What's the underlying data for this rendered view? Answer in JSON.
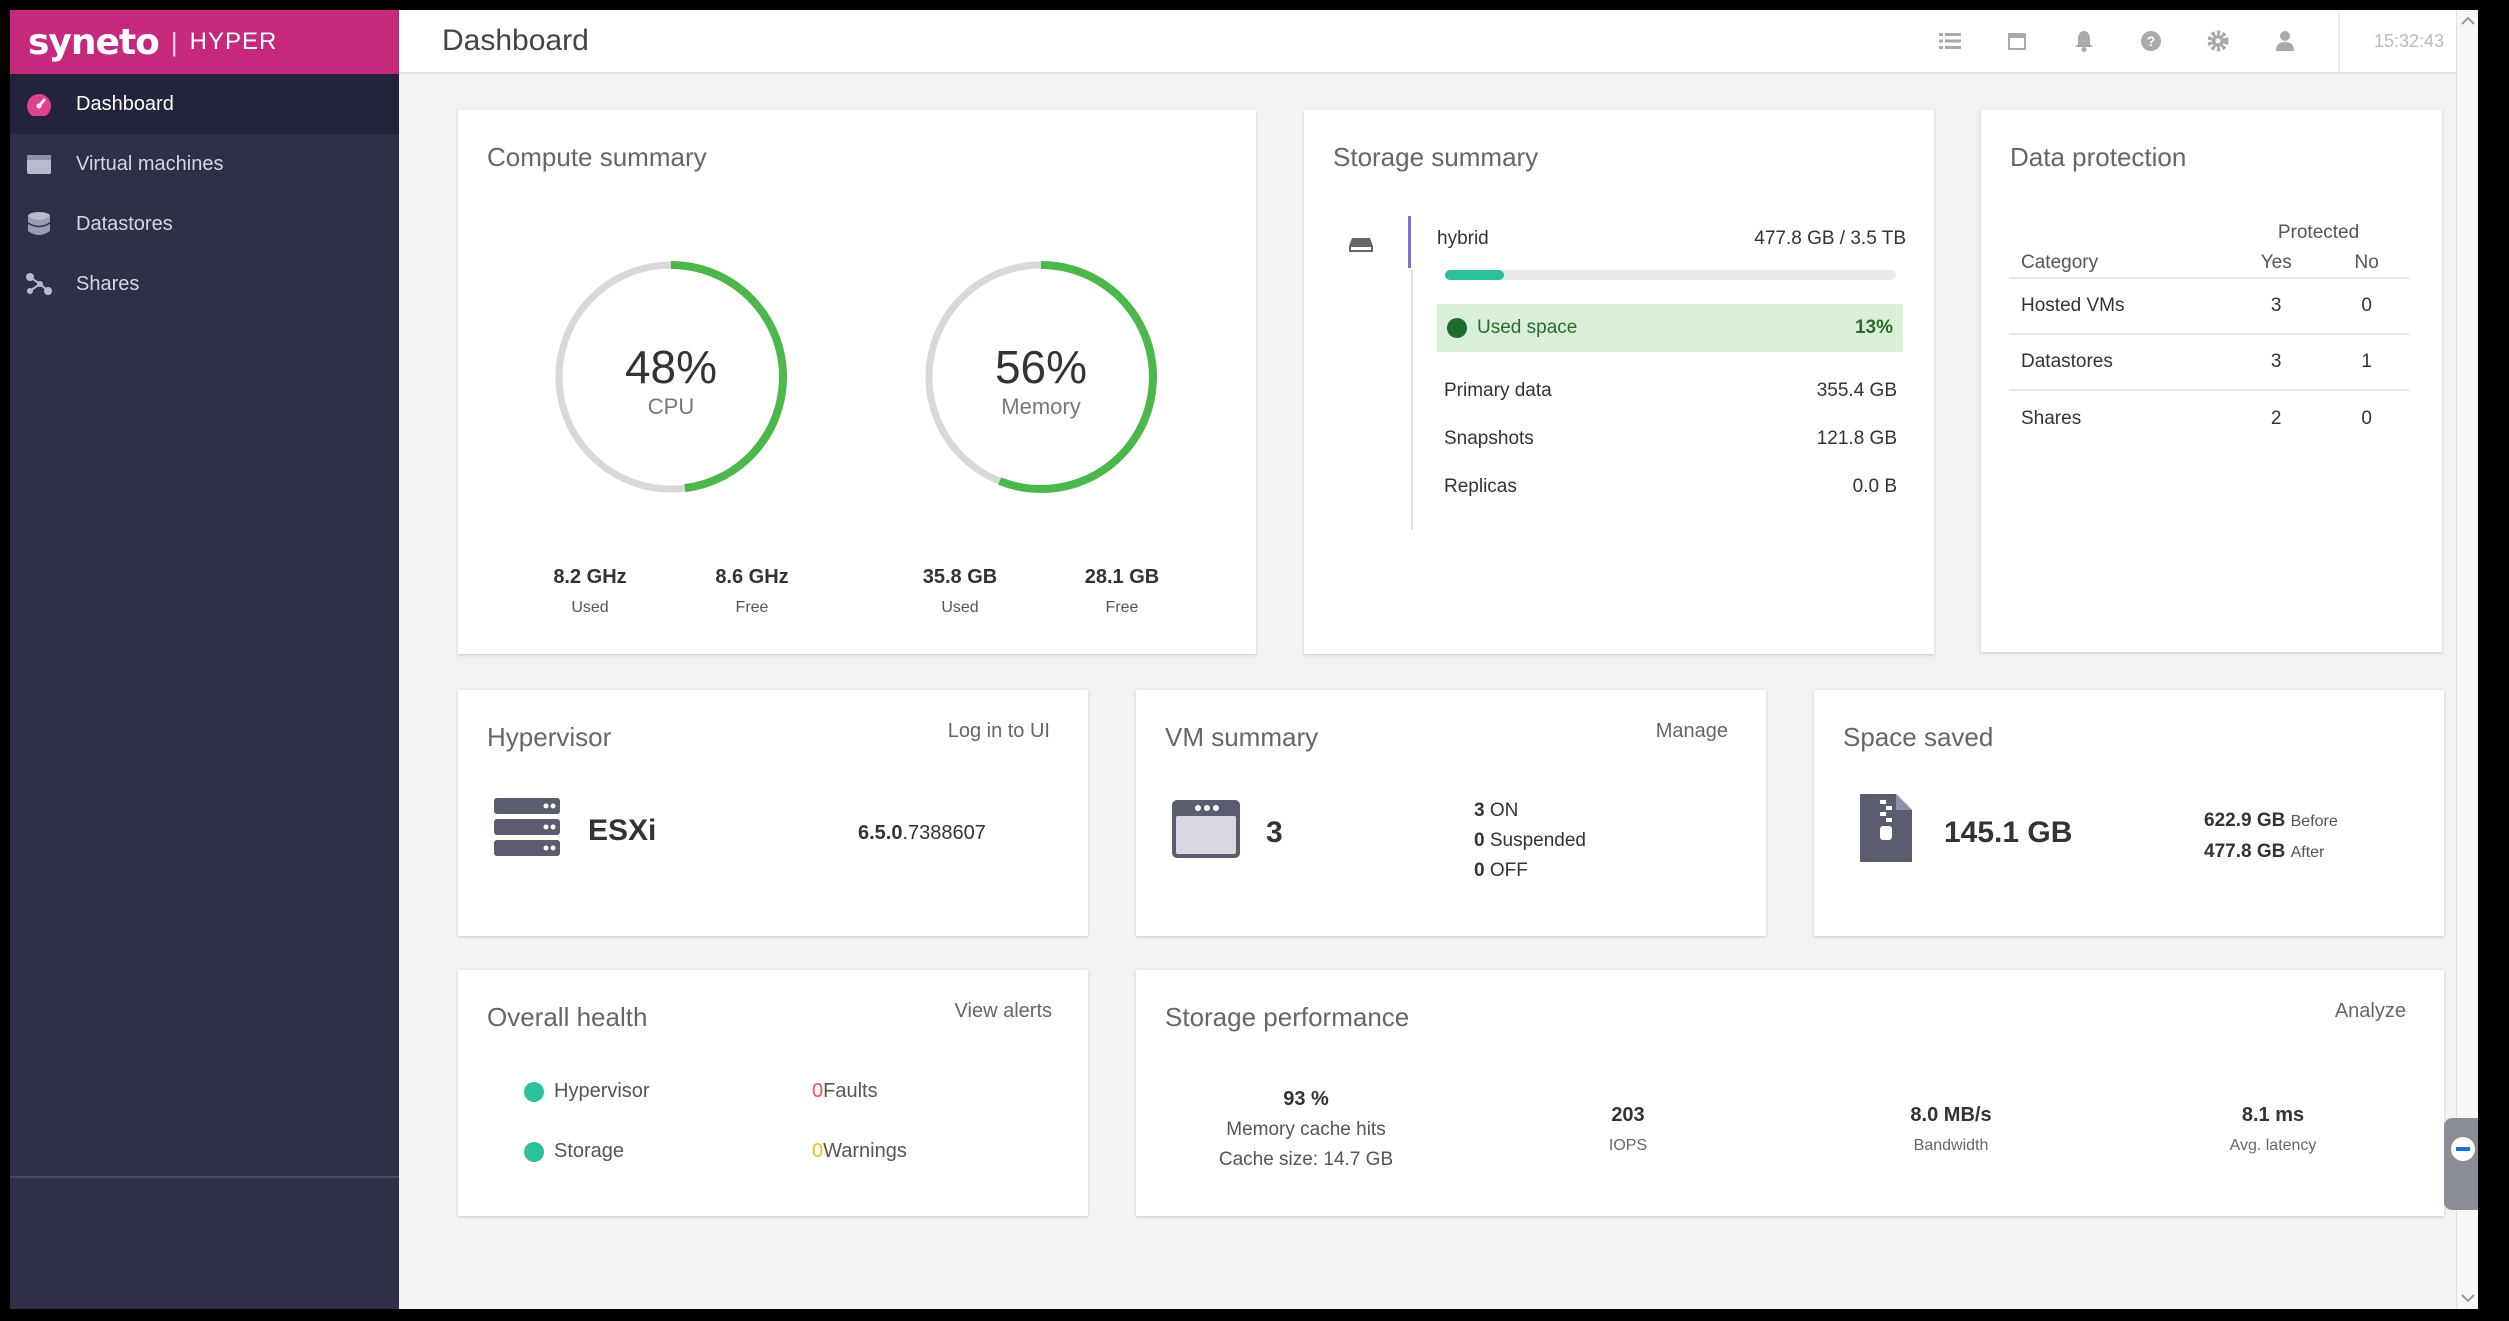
{
  "brand": {
    "logo": "syneto",
    "product": "HYPER"
  },
  "sidebar": {
    "items": [
      {
        "label": "Dashboard",
        "icon": "dashboard-gauge-icon",
        "active": true
      },
      {
        "label": "Virtual machines",
        "icon": "virtual-machine-icon"
      },
      {
        "label": "Datastores",
        "icon": "database-icon"
      },
      {
        "label": "Shares",
        "icon": "share-icon"
      }
    ]
  },
  "topbar": {
    "title": "Dashboard",
    "icons": [
      "list-icon",
      "calendar-icon",
      "bell-icon",
      "help-icon",
      "gear-icon",
      "user-icon"
    ],
    "clock": "15:32:43"
  },
  "compute": {
    "title": "Compute summary",
    "cpu": {
      "percent": 48,
      "percent_label": "48%",
      "label": "CPU",
      "used": "8.2 GHz",
      "used_label": "Used",
      "free": "8.6 GHz",
      "free_label": "Free"
    },
    "memory": {
      "percent": 56,
      "percent_label": "56%",
      "label": "Memory",
      "used": "35.8 GB",
      "used_label": "Used",
      "free": "28.1 GB",
      "free_label": "Free"
    }
  },
  "storage": {
    "title": "Storage summary",
    "pool": "hybrid",
    "capacity": "477.8 GB / 3.5 TB",
    "used_fraction": 0.13,
    "used_label": "Used space",
    "used_percent": "13%",
    "rows": [
      {
        "label": "Primary data",
        "value": "355.4 GB"
      },
      {
        "label": "Snapshots",
        "value": "121.8 GB"
      },
      {
        "label": "Replicas",
        "value": "0.0 B"
      }
    ]
  },
  "protection": {
    "title": "Data protection",
    "protected_header": "Protected",
    "col_category": "Category",
    "col_yes": "Yes",
    "col_no": "No",
    "rows": [
      {
        "category": "Hosted VMs",
        "yes": "3",
        "no": "0"
      },
      {
        "category": "Datastores",
        "yes": "3",
        "no": "1"
      },
      {
        "category": "Shares",
        "yes": "2",
        "no": "0"
      }
    ]
  },
  "hypervisor": {
    "title": "Hypervisor",
    "link": "Log in to UI",
    "name": "ESXi",
    "version_main": "6.5.0",
    "version_build": ".7388607"
  },
  "vm_summary": {
    "title": "VM summary",
    "link": "Manage",
    "count": "3",
    "on": "3",
    "on_label": "ON",
    "suspended": "0",
    "suspended_label": "Suspended",
    "off": "0",
    "off_label": "OFF"
  },
  "space_saved": {
    "title": "Space saved",
    "value": "145.1 GB",
    "before": "622.9 GB",
    "before_label": "Before",
    "after": "477.8 GB",
    "after_label": "After"
  },
  "health": {
    "title": "Overall health",
    "link": "View alerts",
    "items": [
      {
        "label": "Hypervisor",
        "count": "0",
        "count_label": "Faults",
        "count_color": "#e05a4f"
      },
      {
        "label": "Storage",
        "count": "0",
        "count_label": "Warnings",
        "count_color": "#e8c21c"
      }
    ]
  },
  "performance": {
    "title": "Storage performance",
    "link": "Analyze",
    "cache": {
      "value": "93 %",
      "label": "Memory cache hits",
      "size": "Cache size: 14.7 GB"
    },
    "iops": {
      "value": "203",
      "label": "IOPS"
    },
    "bandwidth": {
      "value": "8.0 MB/s",
      "label": "Bandwidth"
    },
    "latency": {
      "value": "8.1 ms",
      "label": "Avg. latency"
    }
  },
  "colors": {
    "brand": "#c5287d",
    "sidebar": "#2f3047",
    "ring": "#4cb74a",
    "ok": "#2cbf9b",
    "used_bar": "#2cbf9b",
    "used_bg": "#d8f0d8"
  }
}
